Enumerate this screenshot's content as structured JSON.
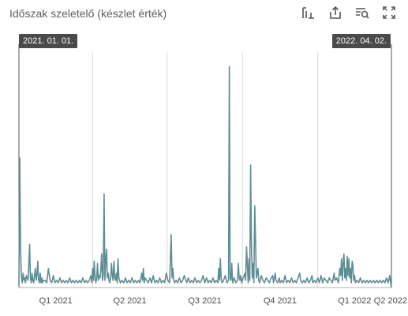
{
  "title": "Időszak szeletelő (készlet érték)",
  "toolbar": {
    "icons": [
      "pin-icon",
      "export-icon",
      "focus-search-icon",
      "expand-icon"
    ]
  },
  "slicer": {
    "start_label": "2021. 01. 01.",
    "end_label": "2022. 04. 02."
  },
  "colors": {
    "line": "#5f8d94",
    "grid": "#dcdcdc",
    "axis": "#b3b3b3",
    "tick": "#4d4d4d"
  },
  "chart_data": {
    "type": "line",
    "x_ticks": [
      "Q1 2021",
      "Q2 2021",
      "Q3 2021",
      "Q4 2021",
      "Q1 2022",
      "Q2 2022"
    ],
    "ylim": [
      0,
      100
    ],
    "grid": "vertical",
    "series": [
      {
        "points": [
          [
            0,
            1
          ],
          [
            1,
            54
          ],
          [
            2,
            15
          ],
          [
            3,
            5
          ],
          [
            4,
            2
          ],
          [
            5,
            6
          ],
          [
            6,
            3
          ],
          [
            7,
            4
          ],
          [
            8,
            2
          ],
          [
            9,
            5
          ],
          [
            11,
            3
          ],
          [
            12,
            9
          ],
          [
            13,
            18
          ],
          [
            14,
            4
          ],
          [
            15,
            2
          ],
          [
            16,
            6
          ],
          [
            17,
            3
          ],
          [
            18,
            2
          ],
          [
            19,
            5
          ],
          [
            20,
            8
          ],
          [
            21,
            3
          ],
          [
            22,
            5
          ],
          [
            23,
            11
          ],
          [
            24,
            3
          ],
          [
            25,
            2
          ],
          [
            26,
            6
          ],
          [
            27,
            2
          ],
          [
            28,
            4
          ],
          [
            29,
            2
          ],
          [
            30,
            3
          ],
          [
            32,
            3
          ],
          [
            34,
            2
          ],
          [
            36,
            8
          ],
          [
            38,
            3
          ],
          [
            40,
            2
          ],
          [
            42,
            5
          ],
          [
            44,
            2
          ],
          [
            46,
            3
          ],
          [
            48,
            2
          ],
          [
            50,
            4
          ],
          [
            52,
            2
          ],
          [
            54,
            3
          ],
          [
            56,
            2
          ],
          [
            58,
            3
          ],
          [
            60,
            2
          ],
          [
            62,
            4
          ],
          [
            64,
            2
          ],
          [
            66,
            3
          ],
          [
            68,
            2
          ],
          [
            70,
            3
          ],
          [
            72,
            2
          ],
          [
            74,
            3
          ],
          [
            76,
            2
          ],
          [
            78,
            4
          ],
          [
            80,
            2
          ],
          [
            82,
            3
          ],
          [
            84,
            2
          ],
          [
            86,
            3
          ],
          [
            88,
            5
          ],
          [
            89,
            2
          ],
          [
            90,
            8
          ],
          [
            91,
            3
          ],
          [
            92,
            11
          ],
          [
            93,
            4
          ],
          [
            94,
            2
          ],
          [
            95,
            4
          ],
          [
            96,
            10
          ],
          [
            97,
            3
          ],
          [
            98,
            5
          ],
          [
            99,
            4
          ],
          [
            100,
            7
          ],
          [
            101,
            14
          ],
          [
            102,
            3
          ],
          [
            103,
            5
          ],
          [
            104,
            39
          ],
          [
            105,
            3
          ],
          [
            106,
            12
          ],
          [
            107,
            16
          ],
          [
            108,
            4
          ],
          [
            109,
            6
          ],
          [
            110,
            3
          ],
          [
            111,
            2
          ],
          [
            112,
            4
          ],
          [
            113,
            10
          ],
          [
            114,
            5
          ],
          [
            115,
            3
          ],
          [
            116,
            11
          ],
          [
            117,
            4
          ],
          [
            118,
            3
          ],
          [
            119,
            6
          ],
          [
            120,
            2
          ],
          [
            121,
            12
          ],
          [
            122,
            4
          ],
          [
            123,
            3
          ],
          [
            124,
            2
          ],
          [
            126,
            3
          ],
          [
            128,
            2
          ],
          [
            130,
            4
          ],
          [
            132,
            2
          ],
          [
            134,
            3
          ],
          [
            136,
            2
          ],
          [
            138,
            4
          ],
          [
            140,
            2
          ],
          [
            142,
            3
          ],
          [
            144,
            2
          ],
          [
            146,
            3
          ],
          [
            148,
            2
          ],
          [
            150,
            6
          ],
          [
            151,
            3
          ],
          [
            152,
            8
          ],
          [
            153,
            2
          ],
          [
            154,
            4
          ],
          [
            156,
            3
          ],
          [
            158,
            2
          ],
          [
            160,
            4
          ],
          [
            162,
            2
          ],
          [
            164,
            5
          ],
          [
            166,
            2
          ],
          [
            168,
            3
          ],
          [
            170,
            2
          ],
          [
            172,
            4
          ],
          [
            174,
            2
          ],
          [
            176,
            3
          ],
          [
            178,
            2
          ],
          [
            180,
            6
          ],
          [
            182,
            3
          ],
          [
            184,
            2
          ],
          [
            186,
            22
          ],
          [
            187,
            4
          ],
          [
            188,
            8
          ],
          [
            189,
            3
          ],
          [
            190,
            2
          ],
          [
            192,
            3
          ],
          [
            194,
            2
          ],
          [
            196,
            4
          ],
          [
            198,
            2
          ],
          [
            200,
            3
          ],
          [
            202,
            5
          ],
          [
            204,
            3
          ],
          [
            205,
            2
          ],
          [
            207,
            4
          ],
          [
            209,
            2
          ],
          [
            211,
            3
          ],
          [
            213,
            2
          ],
          [
            215,
            4
          ],
          [
            217,
            2
          ],
          [
            219,
            3
          ],
          [
            221,
            2
          ],
          [
            223,
            3
          ],
          [
            225,
            5
          ],
          [
            227,
            2
          ],
          [
            229,
            4
          ],
          [
            231,
            2
          ],
          [
            233,
            3
          ],
          [
            235,
            2
          ],
          [
            237,
            4
          ],
          [
            239,
            2
          ],
          [
            241,
            3
          ],
          [
            243,
            2
          ],
          [
            244,
            8
          ],
          [
            245,
            3
          ],
          [
            246,
            12
          ],
          [
            247,
            4
          ],
          [
            248,
            2
          ],
          [
            250,
            3
          ],
          [
            252,
            5
          ],
          [
            254,
            2
          ],
          [
            256,
            3
          ],
          [
            257,
            92
          ],
          [
            258,
            4
          ],
          [
            259,
            3
          ],
          [
            260,
            10
          ],
          [
            261,
            2
          ],
          [
            263,
            4
          ],
          [
            265,
            2
          ],
          [
            267,
            3
          ],
          [
            268,
            10
          ],
          [
            269,
            4
          ],
          [
            270,
            3
          ],
          [
            271,
            5
          ],
          [
            272,
            2
          ],
          [
            274,
            4
          ],
          [
            276,
            6
          ],
          [
            277,
            3
          ],
          [
            278,
            17
          ],
          [
            279,
            10
          ],
          [
            280,
            2
          ],
          [
            281,
            12
          ],
          [
            282,
            3
          ],
          [
            283,
            51
          ],
          [
            284,
            18
          ],
          [
            285,
            4
          ],
          [
            286,
            10
          ],
          [
            287,
            2
          ],
          [
            288,
            34
          ],
          [
            289,
            20
          ],
          [
            290,
            4
          ],
          [
            291,
            6
          ],
          [
            292,
            8
          ],
          [
            293,
            3
          ],
          [
            294,
            2
          ],
          [
            296,
            5
          ],
          [
            298,
            3
          ],
          [
            300,
            2
          ],
          [
            302,
            4
          ],
          [
            304,
            3
          ],
          [
            306,
            2
          ],
          [
            308,
            4
          ],
          [
            310,
            5
          ],
          [
            311,
            2
          ],
          [
            313,
            6
          ],
          [
            314,
            3
          ],
          [
            316,
            2
          ],
          [
            318,
            4
          ],
          [
            319,
            2
          ],
          [
            321,
            3
          ],
          [
            323,
            2
          ],
          [
            325,
            5
          ],
          [
            327,
            2
          ],
          [
            329,
            3
          ],
          [
            331,
            2
          ],
          [
            333,
            4
          ],
          [
            335,
            2
          ],
          [
            337,
            3
          ],
          [
            339,
            2
          ],
          [
            341,
            4
          ],
          [
            343,
            6
          ],
          [
            344,
            3
          ],
          [
            346,
            2
          ],
          [
            348,
            3
          ],
          [
            350,
            2
          ],
          [
            352,
            4
          ],
          [
            354,
            2
          ],
          [
            356,
            3
          ],
          [
            358,
            5
          ],
          [
            359,
            2
          ],
          [
            361,
            3
          ],
          [
            363,
            2
          ],
          [
            365,
            4
          ],
          [
            367,
            2
          ],
          [
            369,
            5
          ],
          [
            371,
            2
          ],
          [
            373,
            4
          ],
          [
            375,
            3
          ],
          [
            377,
            2
          ],
          [
            379,
            4
          ],
          [
            381,
            3
          ],
          [
            383,
            2
          ],
          [
            385,
            6
          ],
          [
            386,
            3
          ],
          [
            388,
            4
          ],
          [
            390,
            2
          ],
          [
            392,
            8
          ],
          [
            393,
            5
          ],
          [
            394,
            12
          ],
          [
            395,
            3
          ],
          [
            396,
            10
          ],
          [
            397,
            14
          ],
          [
            398,
            4
          ],
          [
            399,
            8
          ],
          [
            400,
            3
          ],
          [
            401,
            13
          ],
          [
            402,
            5
          ],
          [
            403,
            12
          ],
          [
            404,
            4
          ],
          [
            405,
            8
          ],
          [
            406,
            2
          ],
          [
            407,
            11
          ],
          [
            408,
            9
          ],
          [
            409,
            3
          ],
          [
            410,
            5
          ],
          [
            411,
            2
          ],
          [
            413,
            3
          ],
          [
            415,
            2
          ],
          [
            417,
            4
          ],
          [
            419,
            2
          ],
          [
            421,
            3
          ],
          [
            423,
            2
          ],
          [
            425,
            3
          ],
          [
            427,
            2
          ],
          [
            429,
            3
          ],
          [
            431,
            2
          ],
          [
            433,
            3
          ],
          [
            435,
            2
          ],
          [
            437,
            3
          ],
          [
            439,
            2
          ],
          [
            441,
            3
          ],
          [
            443,
            2
          ],
          [
            445,
            3
          ],
          [
            447,
            2
          ],
          [
            449,
            4
          ],
          [
            451,
            2
          ],
          [
            453,
            5
          ],
          [
            454,
            2
          ],
          [
            455,
            0
          ]
        ]
      }
    ]
  }
}
